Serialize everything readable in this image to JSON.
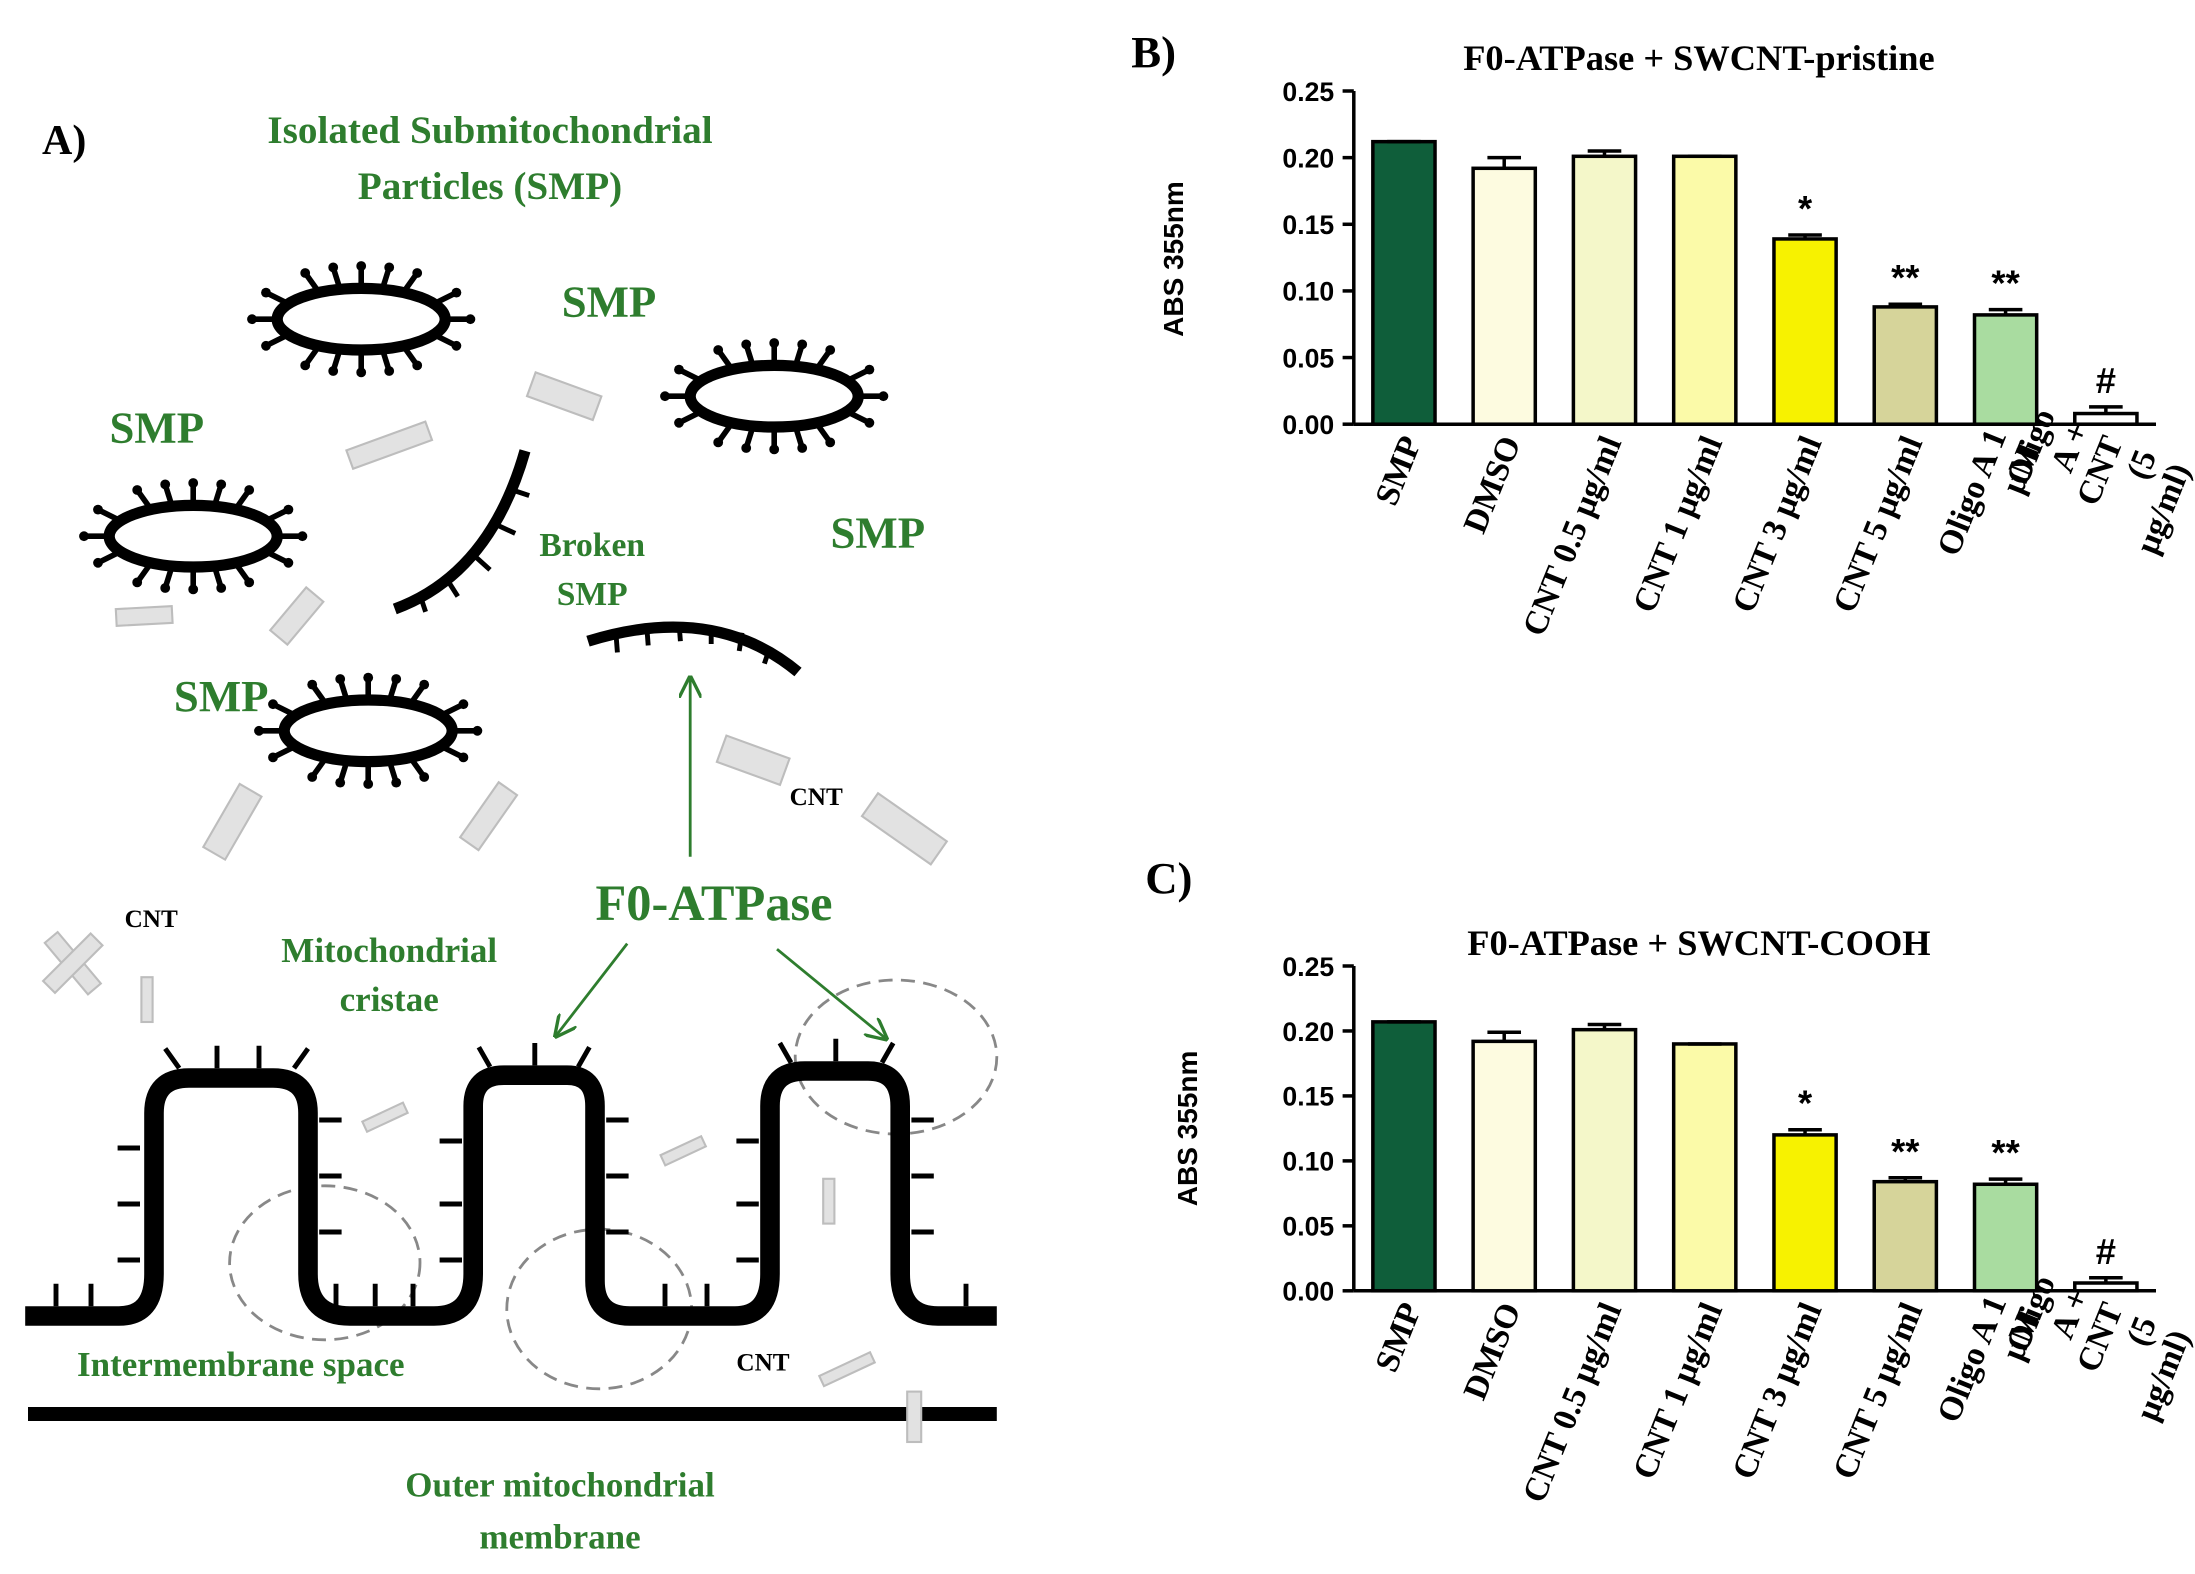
{
  "diagram": {
    "panel_label": "A)",
    "title_lines": [
      "Isolated Submitochondrial",
      "Particles (SMP)"
    ],
    "smp_labels": [
      "SMP",
      "SMP",
      "SMP",
      "SMP"
    ],
    "broken_smp_lines": [
      "Broken",
      "SMP"
    ],
    "cnt_labels": [
      "CNT",
      "CNT",
      "CNT"
    ],
    "f0_label": "F0-ATPase",
    "cristae_lines": [
      "Mitochondrial",
      "cristae"
    ],
    "intermembrane": "Intermembrane space",
    "outer_lines": [
      "Outer mitochondrial",
      "membrane"
    ]
  },
  "chart_data": [
    {
      "type": "bar",
      "panel_label": "B)",
      "title": "F0-ATPase + SWCNT-pristine",
      "ylabel": "ABS 355nm",
      "categories": [
        "SMP",
        "DMSO",
        "CNT 0.5 μg/ml",
        "CNT 1 μg/ml",
        "CNT 3 μg/ml",
        "CNT 5 μg/ml",
        "Oligo A 1 μM",
        "Oligo A +\nCNT (5 μg/ml)"
      ],
      "values": [
        0.212,
        0.192,
        0.201,
        0.201,
        0.139,
        0.088,
        0.082,
        0.008
      ],
      "errors": [
        0,
        0.008,
        0.004,
        0,
        0.003,
        0.002,
        0.004,
        0.005
      ],
      "bar_labels": [
        null,
        null,
        null,
        null,
        "*",
        "**",
        "**",
        "#"
      ],
      "colors": [
        "#0f5e3a",
        "#fdfbe0",
        "#f4f7c9",
        "#fbfaa8",
        "#f7f200",
        "#d6d49a",
        "#a9dca0",
        "#ffffff"
      ],
      "ylim": [
        0,
        0.25
      ],
      "yticks": [
        {
          "value": 0,
          "label": "0.00"
        },
        0.05,
        {
          "value": 0.1,
          "label": "0.10"
        },
        0.15,
        {
          "value": 0.2,
          "label": "0.20"
        },
        0.25
      ]
    },
    {
      "type": "bar",
      "panel_label": "C)",
      "title": "F0-ATPase + SWCNT-COOH",
      "ylabel": "ABS 355nm",
      "categories": [
        "SMP",
        "DMSO",
        "CNT 0.5 μg/ml",
        "CNT 1 μg/ml",
        "CNT 3 μg/ml",
        "CNT 5 μg/ml",
        "Oligo A 1 μM",
        "Oligo A +\nCNT (5 μg/ml)"
      ],
      "values": [
        0.207,
        0.192,
        0.201,
        0.19,
        0.12,
        0.084,
        0.082,
        0.006
      ],
      "errors": [
        0,
        0.007,
        0.004,
        0,
        0.004,
        0.003,
        0.004,
        0.004
      ],
      "bar_labels": [
        null,
        null,
        null,
        null,
        "*",
        "**",
        "**",
        "#"
      ],
      "colors": [
        "#0f5e3a",
        "#fdfbe0",
        "#f4f7c9",
        "#fbfaa8",
        "#f7f200",
        "#d6d49a",
        "#a9dca0",
        "#ffffff"
      ],
      "ylim": [
        0,
        0.25
      ],
      "yticks": [
        {
          "value": 0,
          "label": "0.00"
        },
        0.05,
        {
          "value": 0.1,
          "label": "0.10"
        },
        0.15,
        {
          "value": 0.2,
          "label": "0.20"
        },
        0.25
      ]
    }
  ]
}
